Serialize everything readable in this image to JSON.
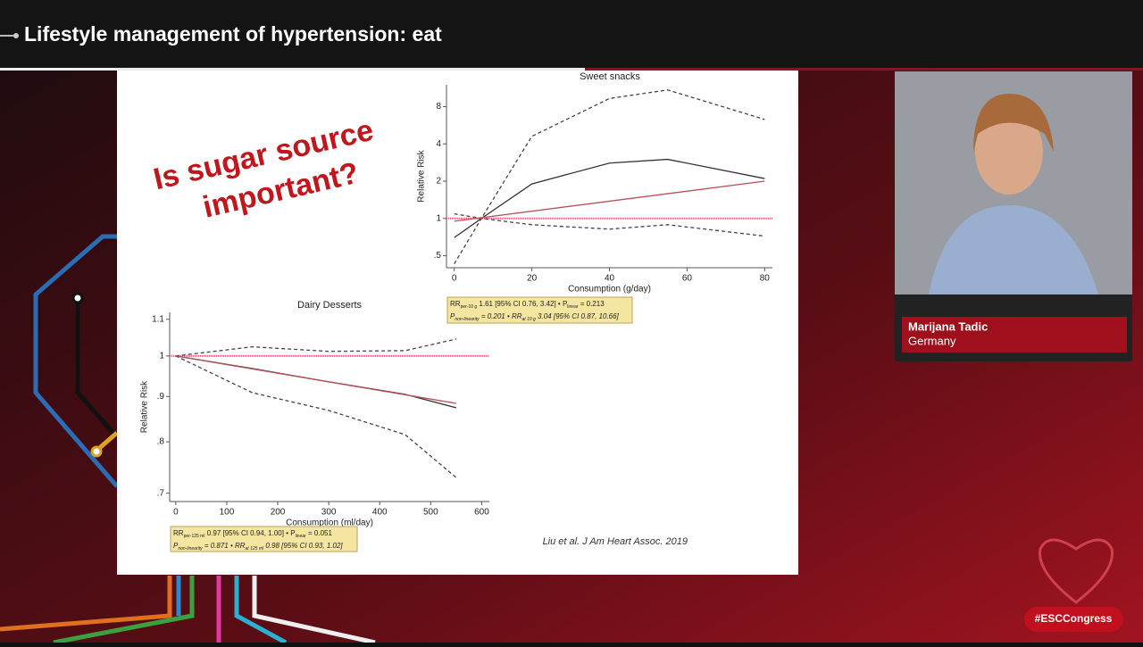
{
  "header": {
    "title": "Lifestyle management of hypertension: eat"
  },
  "slide": {
    "headline": [
      "Is sugar source",
      "important?"
    ],
    "citation": "Liu et al. J Am Heart Assoc. 2019",
    "charts": [
      {
        "title": "Sweet snacks",
        "x_label": "Consumption (g/day)",
        "y_label": "Relative Risk",
        "y_log": true,
        "xlim": [
          -2,
          82
        ],
        "ylim": [
          0.4,
          12
        ],
        "xticks": [
          0,
          20,
          40,
          60,
          80
        ],
        "yticks": [
          {
            "value": 0.5,
            "label": ".5"
          },
          1,
          2,
          4,
          8
        ],
        "reference": 1,
        "x": [
          0,
          7,
          20,
          40,
          55,
          80
        ],
        "series": [
          {
            "color": "#333333",
            "dashed": false,
            "values": [
              0.7,
              1,
              1.9,
              2.8,
              3.0,
              2.1
            ]
          },
          {
            "color": "#444444",
            "dashed": true,
            "values": [
              0.43,
              1,
              4.6,
              9.3,
              10.9,
              6.3
            ]
          },
          {
            "color": "#444444",
            "dashed": true,
            "values": [
              1.09,
              1,
              0.89,
              0.82,
              0.89,
              0.72
            ]
          }
        ],
        "trend": {
          "color": "#b5525a",
          "x": [
            0,
            80
          ],
          "values": [
            0.95,
            2.0
          ]
        },
        "stats": [
          [
            "RR",
            "per-10 g",
            " 1.61 [95% CI 0.76, 3.42] • P",
            "linear",
            " = 0.213"
          ],
          [
            "P",
            "non-linearity",
            " = 0.201 • RR",
            "at 10 g",
            " 3.04 [95% CI 0.87, 10.66]"
          ]
        ]
      },
      {
        "title": "Dairy Desserts",
        "x_label": "Consumption (ml/day)",
        "y_label": "Relative Risk",
        "y_log": true,
        "xlim": [
          -12,
          615
        ],
        "ylim": [
          0.685,
          1.12
        ],
        "xticks": [
          0,
          100,
          200,
          300,
          400,
          500,
          600
        ],
        "yticks": [
          {
            "value": 0.7,
            "label": ".7"
          },
          {
            "value": 0.8,
            "label": ".8"
          },
          {
            "value": 0.9,
            "label": ".9"
          },
          1,
          1.1
        ],
        "reference": 1,
        "x": [
          0,
          150,
          300,
          450,
          550
        ],
        "series": [
          {
            "color": "#333333",
            "dashed": false,
            "values": [
              1,
              0.968,
              0.935,
              0.905,
              0.874
            ]
          },
          {
            "color": "#444444",
            "dashed": true,
            "values": [
              1,
              1.024,
              1.012,
              1.014,
              1.045
            ]
          },
          {
            "color": "#444444",
            "dashed": true,
            "values": [
              1,
              0.909,
              0.868,
              0.815,
              0.729
            ]
          }
        ],
        "trend": {
          "color": "#b5525a",
          "x": [
            0,
            550
          ],
          "values": [
            1,
            0.884
          ]
        },
        "stats": [
          [
            "RR",
            "per-125 ml",
            " 0.97 [95% CI 0.94, 1.00] • P",
            "linear",
            " = 0.051"
          ],
          [
            "P",
            "non-linearity",
            " = 0.871 • RR",
            "at 125 ml",
            " 0.98 [95% CI 0.93, 1.02]"
          ]
        ]
      }
    ]
  },
  "speaker": {
    "name": "Marijana Tadic",
    "country": "Germany"
  },
  "footer": {
    "hashtag": "#ESCCongress"
  }
}
